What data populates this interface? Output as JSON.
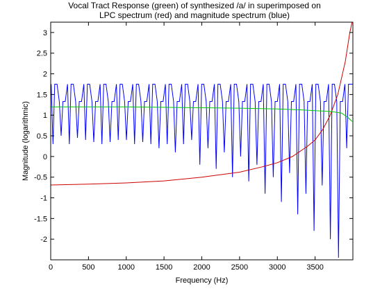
{
  "chart_data": {
    "type": "line",
    "title": [
      "Vocal Tract Response (green) of synthesized /a/ in superimposed on",
      "LPC spectrum (red) and magnitude spectrum (blue)"
    ],
    "xlabel": "Frequency (Hz)",
    "ylabel": "Magnitude (logarithmic)",
    "xlim": [
      0,
      4000
    ],
    "ylim": [
      -2.5,
      3.25
    ],
    "xticks": [
      0,
      500,
      1000,
      1500,
      2000,
      2500,
      3000,
      3500
    ],
    "yticks": [
      -2,
      -1.5,
      -1,
      -0.5,
      0,
      0.5,
      1,
      1.5,
      2,
      2.5,
      3
    ],
    "grid": false,
    "series": [
      {
        "name": "magnitude spectrum",
        "color": "#0000ff",
        "harmonic_spacing_hz": 108,
        "peak_max": 1.75,
        "peak_min": 1.33,
        "valleys": [
          {
            "x": 30,
            "y": 0.3
          },
          {
            "x": 138,
            "y": 0.5
          },
          {
            "x": 246,
            "y": 0.3
          },
          {
            "x": 354,
            "y": 0.45
          },
          {
            "x": 462,
            "y": 0.4
          },
          {
            "x": 570,
            "y": 0.35
          },
          {
            "x": 678,
            "y": 0.3
          },
          {
            "x": 786,
            "y": 0.35
          },
          {
            "x": 894,
            "y": 0.4
          },
          {
            "x": 1002,
            "y": 0.4
          },
          {
            "x": 1110,
            "y": 0.3
          },
          {
            "x": 1218,
            "y": 0.35
          },
          {
            "x": 1326,
            "y": 0.3
          },
          {
            "x": 1434,
            "y": 0.2
          },
          {
            "x": 1542,
            "y": 0.3
          },
          {
            "x": 1650,
            "y": 0.1
          },
          {
            "x": 1758,
            "y": 0.3
          },
          {
            "x": 1866,
            "y": 0.4
          },
          {
            "x": 1974,
            "y": -0.2
          },
          {
            "x": 2082,
            "y": 0.2
          },
          {
            "x": 2190,
            "y": -0.3
          },
          {
            "x": 2298,
            "y": 0.1
          },
          {
            "x": 2406,
            "y": -0.5
          },
          {
            "x": 2514,
            "y": 0.0
          },
          {
            "x": 2622,
            "y": -0.6
          },
          {
            "x": 2730,
            "y": -0.2
          },
          {
            "x": 2838,
            "y": -0.9
          },
          {
            "x": 2946,
            "y": -0.5
          },
          {
            "x": 3054,
            "y": -1.1
          },
          {
            "x": 3162,
            "y": -0.4
          },
          {
            "x": 3270,
            "y": -1.4
          },
          {
            "x": 3378,
            "y": -0.9
          },
          {
            "x": 3486,
            "y": -1.8
          },
          {
            "x": 3594,
            "y": -0.7
          },
          {
            "x": 3702,
            "y": -2.0
          },
          {
            "x": 3810,
            "y": -2.45
          },
          {
            "x": 3918,
            "y": 0.2
          }
        ]
      },
      {
        "name": "LPC spectrum",
        "color": "#cc0000",
        "points": [
          [
            0,
            -0.69
          ],
          [
            500,
            -0.67
          ],
          [
            1000,
            -0.64
          ],
          [
            1500,
            -0.59
          ],
          [
            2000,
            -0.5
          ],
          [
            2500,
            -0.38
          ],
          [
            2800,
            -0.25
          ],
          [
            3000,
            -0.15
          ],
          [
            3200,
            0.0
          ],
          [
            3400,
            0.25
          ],
          [
            3500,
            0.4
          ],
          [
            3600,
            0.65
          ],
          [
            3700,
            1.0
          ],
          [
            3800,
            1.5
          ],
          [
            3900,
            2.3
          ],
          [
            3960,
            3.0
          ],
          [
            3990,
            3.25
          ]
        ]
      },
      {
        "name": "vocal tract response",
        "color": "#00cc00",
        "points": [
          [
            0,
            1.2
          ],
          [
            500,
            1.2
          ],
          [
            1000,
            1.2
          ],
          [
            1500,
            1.19
          ],
          [
            2000,
            1.18
          ],
          [
            2500,
            1.17
          ],
          [
            3000,
            1.15
          ],
          [
            3300,
            1.13
          ],
          [
            3500,
            1.11
          ],
          [
            3700,
            1.09
          ],
          [
            3850,
            1.05
          ],
          [
            3930,
            0.95
          ],
          [
            3990,
            0.85
          ]
        ]
      }
    ]
  }
}
